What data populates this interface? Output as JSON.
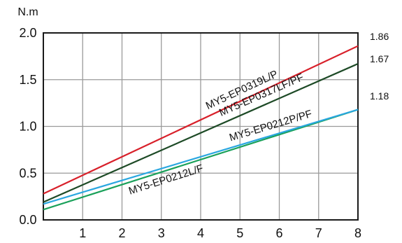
{
  "chart_data": {
    "type": "line",
    "ylabel": "N.m",
    "xlim": [
      0,
      8
    ],
    "ylim": [
      0,
      2.0
    ],
    "x_ticks": [
      1,
      2,
      3,
      4,
      5,
      6,
      7,
      8
    ],
    "y_ticks": [
      0.0,
      0.5,
      1.0,
      1.5,
      2.0
    ],
    "y_tick_labels": [
      "0.0",
      "0.5",
      "1.0",
      "1.5",
      "2.0"
    ],
    "grid": true,
    "series": [
      {
        "name": "MY5-EP0319L/P",
        "x": [
          0,
          8
        ],
        "y": [
          0.28,
          1.86
        ],
        "color": "#d8202a",
        "end_label": "1.86"
      },
      {
        "name": "MY5-EP0317LF/PF",
        "x": [
          0,
          8
        ],
        "y": [
          0.19,
          1.67
        ],
        "color": "#1d4a26",
        "end_label": "1.67"
      },
      {
        "name": "MY5-EP0212P/PF",
        "x": [
          0,
          8
        ],
        "y": [
          0.17,
          1.18
        ],
        "color": "#2aa7e0",
        "end_label": ""
      },
      {
        "name": "MY5-EP0212L/F",
        "x": [
          0,
          8
        ],
        "y": [
          0.11,
          1.18
        ],
        "color": "#1aa15a",
        "end_label": "1.18"
      }
    ]
  }
}
